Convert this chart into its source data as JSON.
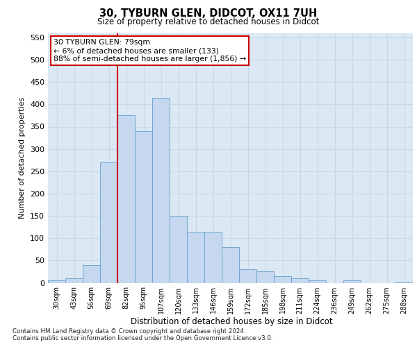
{
  "title_line1": "30, TYBURN GLEN, DIDCOT, OX11 7UH",
  "title_line2": "Size of property relative to detached houses in Didcot",
  "xlabel": "Distribution of detached houses by size in Didcot",
  "ylabel": "Number of detached properties",
  "categories": [
    "30sqm",
    "43sqm",
    "56sqm",
    "69sqm",
    "82sqm",
    "95sqm",
    "107sqm",
    "120sqm",
    "133sqm",
    "146sqm",
    "159sqm",
    "172sqm",
    "185sqm",
    "198sqm",
    "211sqm",
    "224sqm",
    "236sqm",
    "249sqm",
    "262sqm",
    "275sqm",
    "288sqm"
  ],
  "values": [
    5,
    10,
    40,
    270,
    375,
    340,
    415,
    150,
    115,
    115,
    80,
    30,
    25,
    15,
    10,
    5,
    0,
    5,
    0,
    0,
    2
  ],
  "bar_color": "#c5d8ef",
  "bar_edge_color": "#6fa8d0",
  "grid_color": "#c8d8e8",
  "background_color": "#dce8f4",
  "vline_x_index": 4,
  "vline_color": "#cc0000",
  "annotation_text": "30 TYBURN GLEN: 79sqm\n← 6% of detached houses are smaller (133)\n88% of semi-detached houses are larger (1,856) →",
  "annotation_box_color": "white",
  "annotation_box_edge": "#cc0000",
  "ylim": [
    0,
    560
  ],
  "yticks": [
    0,
    50,
    100,
    150,
    200,
    250,
    300,
    350,
    400,
    450,
    500,
    550
  ],
  "footer": "Contains HM Land Registry data © Crown copyright and database right 2024.\nContains public sector information licensed under the Open Government Licence v3.0."
}
